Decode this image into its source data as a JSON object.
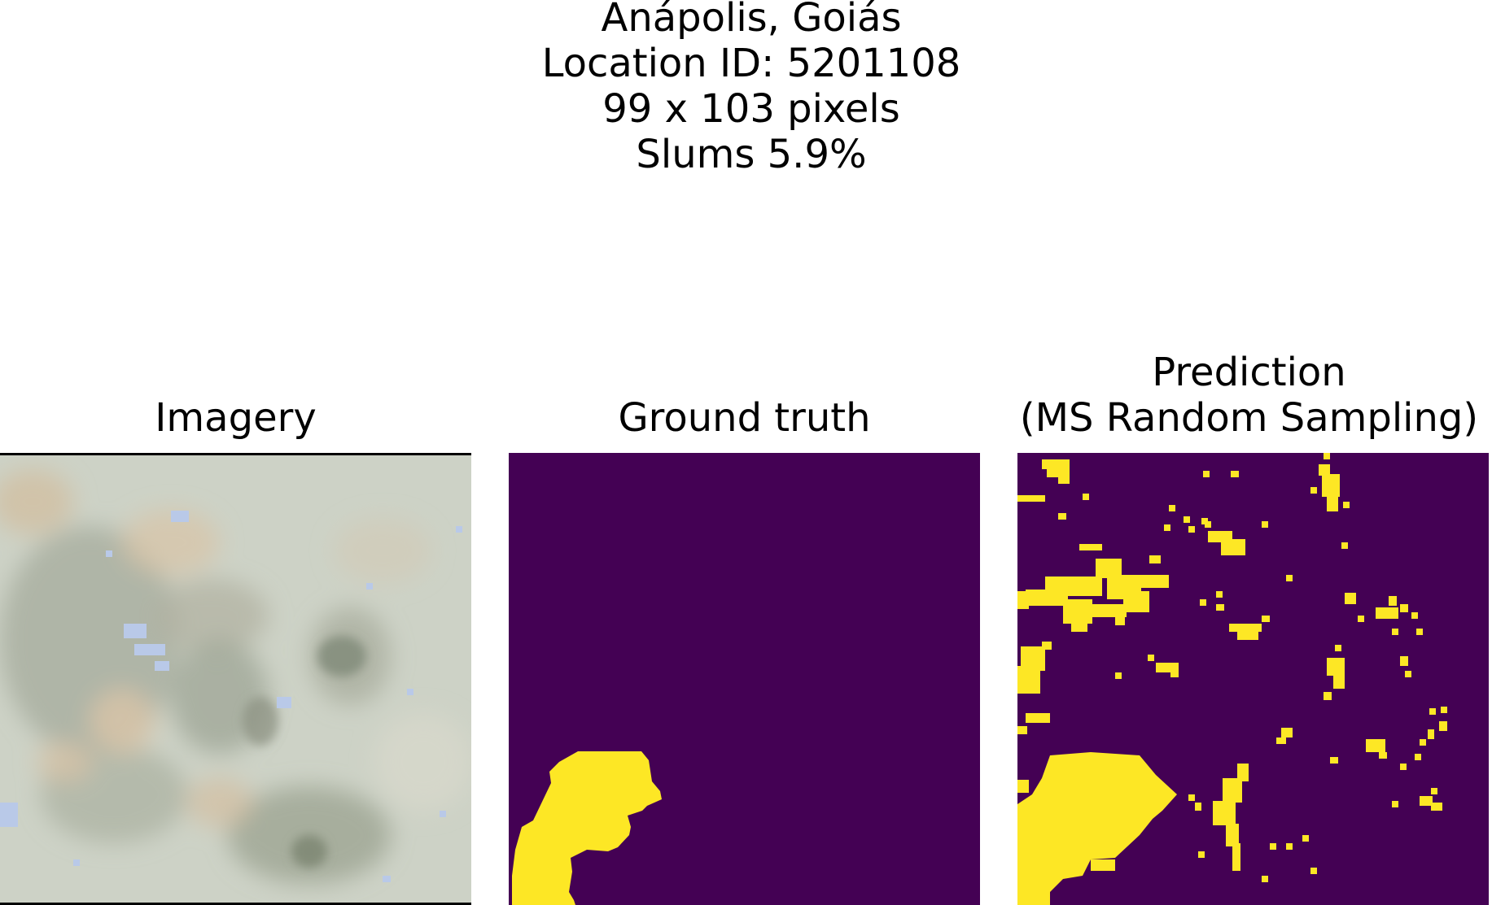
{
  "figure": {
    "header": {
      "city": "Anápolis, Goiás",
      "location_id": "Location ID: 5201108",
      "dimensions": "99 x 103 pixels",
      "slums": "Slums 5.9%"
    },
    "panels": [
      {
        "title": "Imagery"
      },
      {
        "title": "Ground truth"
      },
      {
        "title_line1": "Prediction",
        "title_line2": "(MS Random Sampling)"
      }
    ],
    "colors": {
      "background_class": "#440154",
      "slum_class": "#fde725",
      "imagery_base": "#c9cdc0"
    }
  }
}
